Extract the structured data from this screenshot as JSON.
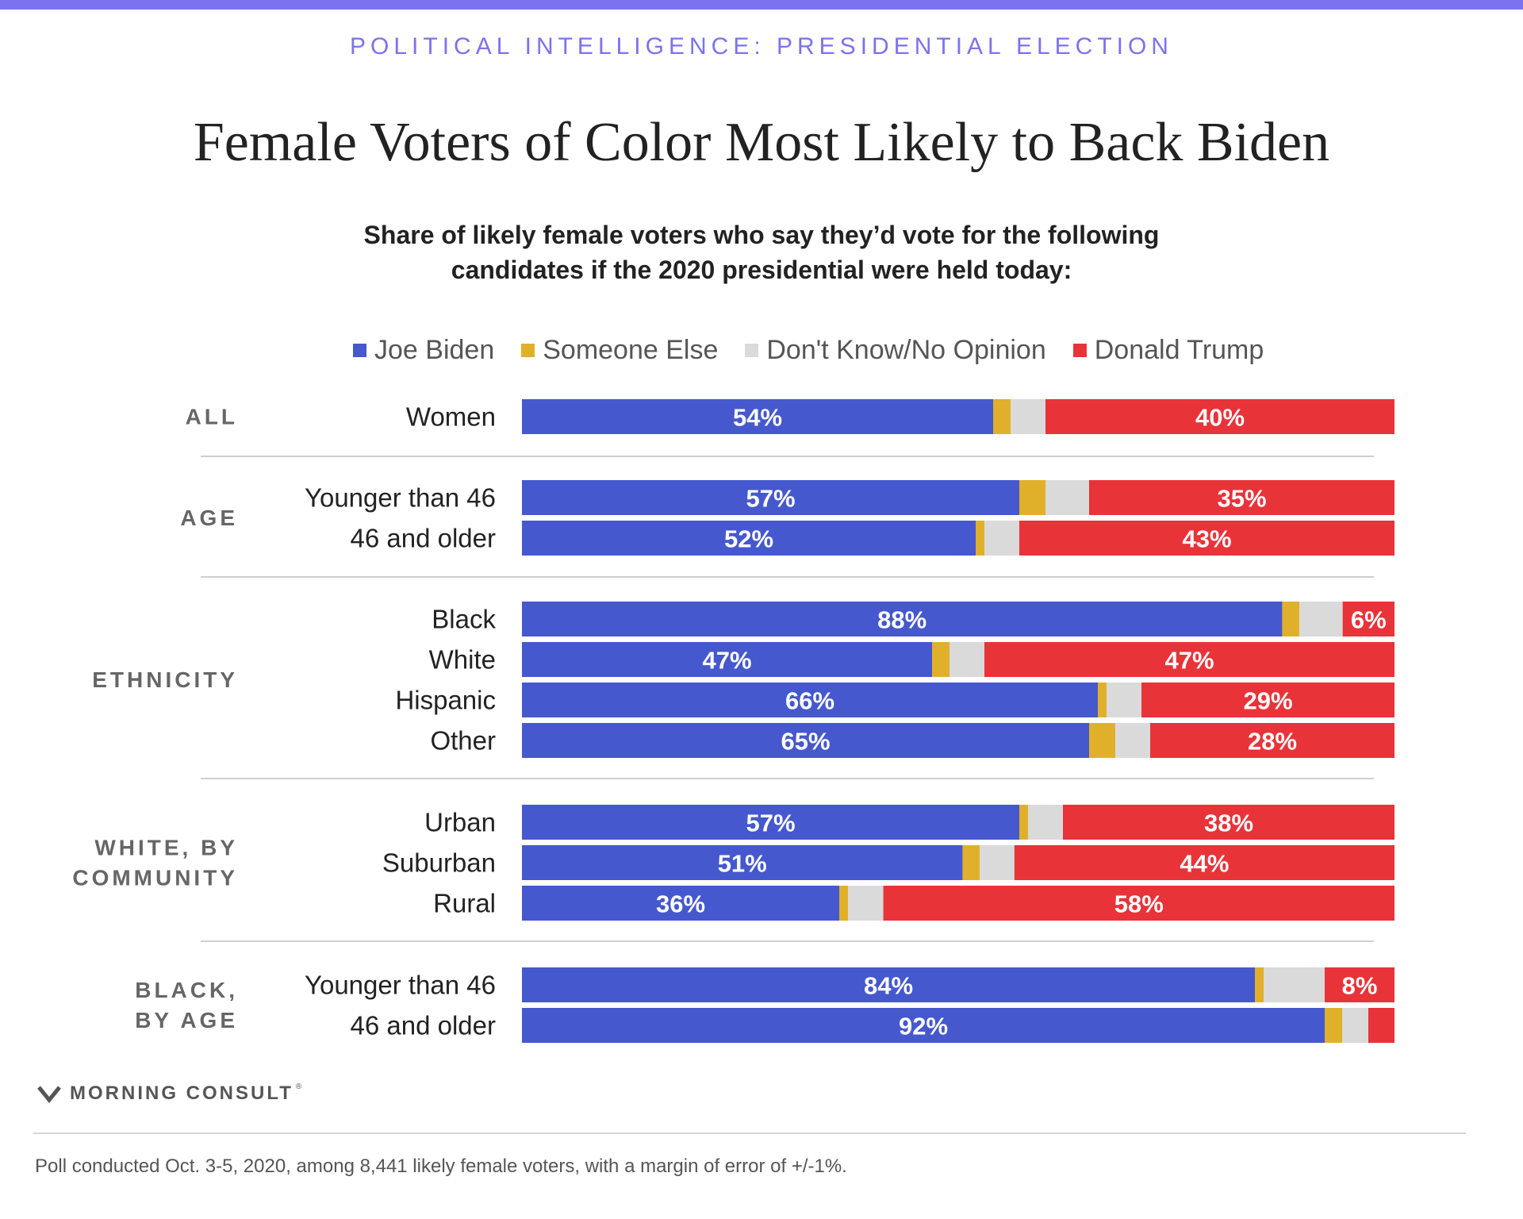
{
  "header": {
    "kicker": "POLITICAL INTELLIGENCE: PRESIDENTIAL ELECTION",
    "title": "Female Voters of Color Most Likely to Back Biden",
    "subtitle_line1": "Share of likely female voters who say they’d vote for the following",
    "subtitle_line2": "candidates if the 2020 presidential were held today:"
  },
  "colors": {
    "accent": "#7b72f0",
    "biden": "#4558cd",
    "someone_else": "#e1b02b",
    "dont_know": "#dadada",
    "trump": "#e83339"
  },
  "legend": [
    {
      "label": "Joe Biden",
      "color": "#4558cd"
    },
    {
      "label": "Someone Else",
      "color": "#e1b02b"
    },
    {
      "label": "Don't Know/No Opinion",
      "color": "#dadada"
    },
    {
      "label": "Donald Trump",
      "color": "#e83339"
    }
  ],
  "chart_data": {
    "type": "bar",
    "orientation": "horizontal",
    "stacked": true,
    "xlim": [
      0,
      100
    ],
    "series": [
      {
        "name": "Joe Biden",
        "color": "#4558cd",
        "show_labels": true
      },
      {
        "name": "Someone Else",
        "color": "#e1b02b",
        "show_labels": false
      },
      {
        "name": "Don't Know/No Opinion",
        "color": "#dadada",
        "show_labels": false
      },
      {
        "name": "Donald Trump",
        "color": "#e83339",
        "show_labels": true
      }
    ],
    "groups": [
      {
        "label_lines": [
          "ALL"
        ],
        "rows": [
          {
            "label": "Women",
            "values": [
              54,
              2,
              4,
              40
            ],
            "labels": [
              "54%",
              "",
              "",
              "40%"
            ]
          }
        ]
      },
      {
        "label_lines": [
          "AGE"
        ],
        "rows": [
          {
            "label": "Younger than 46",
            "values": [
              57,
              3,
              5,
              35
            ],
            "labels": [
              "57%",
              "",
              "",
              "35%"
            ]
          },
          {
            "label": "46 and older",
            "values": [
              52,
              1,
              4,
              43
            ],
            "labels": [
              "52%",
              "",
              "",
              "43%"
            ]
          }
        ]
      },
      {
        "label_lines": [
          "ETHNICITY"
        ],
        "rows": [
          {
            "label": "Black",
            "values": [
              88,
              2,
              5,
              6
            ],
            "labels": [
              "88%",
              "",
              "",
              "6%"
            ]
          },
          {
            "label": "White",
            "values": [
              47,
              2,
              4,
              47
            ],
            "labels": [
              "47%",
              "",
              "",
              "47%"
            ]
          },
          {
            "label": "Hispanic",
            "values": [
              66,
              1,
              4,
              29
            ],
            "labels": [
              "66%",
              "",
              "",
              "29%"
            ]
          },
          {
            "label": "Other",
            "values": [
              65,
              3,
              4,
              28
            ],
            "labels": [
              "65%",
              "",
              "",
              "28%"
            ]
          }
        ]
      },
      {
        "label_lines": [
          "WHITE, BY",
          "COMMUNITY"
        ],
        "rows": [
          {
            "label": "Urban",
            "values": [
              57,
              1,
              4,
              38
            ],
            "labels": [
              "57%",
              "",
              "",
              "38%"
            ]
          },
          {
            "label": "Suburban",
            "values": [
              51,
              2,
              4,
              44
            ],
            "labels": [
              "51%",
              "",
              "",
              "44%"
            ]
          },
          {
            "label": "Rural",
            "values": [
              36,
              1,
              4,
              58
            ],
            "labels": [
              "36%",
              "",
              "",
              "58%"
            ]
          }
        ]
      },
      {
        "label_lines": [
          "BLACK,",
          "BY AGE"
        ],
        "rows": [
          {
            "label": "Younger than 46",
            "values": [
              84,
              1,
              7,
              8
            ],
            "labels": [
              "84%",
              "",
              "",
              "8%"
            ]
          },
          {
            "label": "46 and older",
            "values": [
              92,
              2,
              3,
              3
            ],
            "labels": [
              "92%",
              "",
              "",
              ""
            ]
          }
        ]
      }
    ]
  },
  "footer": {
    "brand": "MORNING CONSULT",
    "trademark": "®",
    "note": "Poll conducted Oct. 3-5, 2020, among 8,441 likely female voters, with a margin of error of +/-1%."
  }
}
